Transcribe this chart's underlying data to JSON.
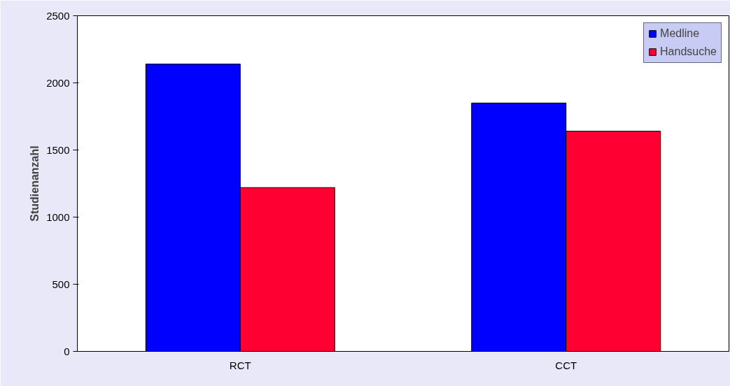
{
  "chart_data": {
    "type": "bar",
    "ylabel": "Studienanzahl",
    "categories": [
      "RCT",
      "CCT"
    ],
    "series": [
      {
        "name": "Medline",
        "color": "#0000ff",
        "values": [
          2140,
          1850
        ]
      },
      {
        "name": "Handsuche",
        "color": "#ff0033",
        "values": [
          1220,
          1640
        ]
      }
    ],
    "ylim": [
      0,
      2500
    ],
    "yticks": [
      0,
      500,
      1000,
      1500,
      2000,
      2500
    ],
    "grid": false,
    "legend": "top right"
  }
}
